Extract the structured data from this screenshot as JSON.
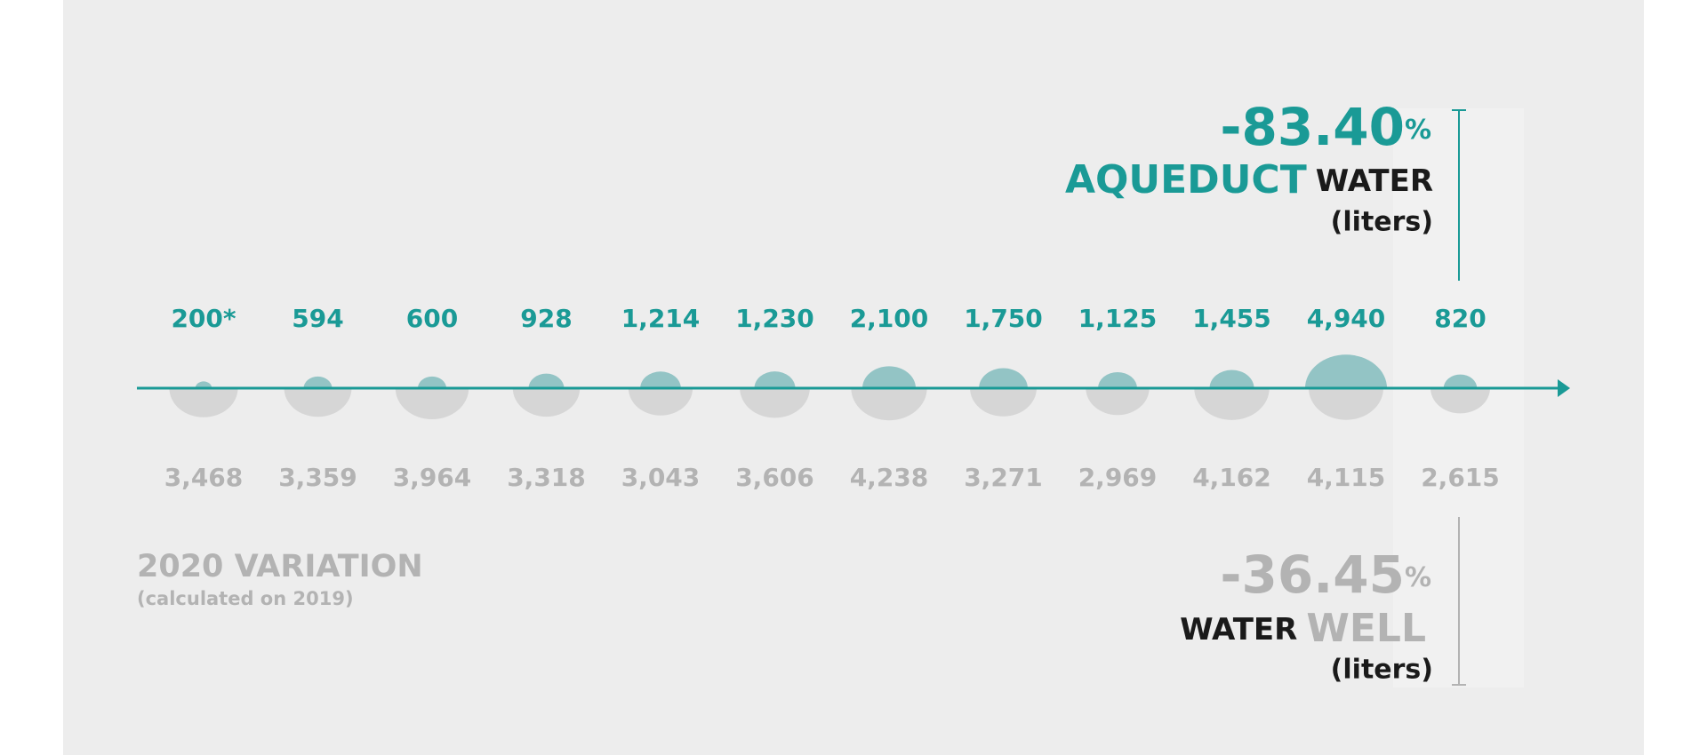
{
  "chart_data": {
    "type": "bubble",
    "series": [
      {
        "name": "AQUEDUCT",
        "color": "#1a9a96",
        "blob_color": "#93c4c5",
        "values": [
          200,
          594,
          600,
          928,
          1214,
          1230,
          2100,
          1750,
          1125,
          1455,
          4940,
          820
        ],
        "value_labels": [
          "200*",
          "594",
          "600",
          "928",
          "1,214",
          "1,230",
          "2,100",
          "1,750",
          "1,125",
          "1,455",
          "4,940",
          "820"
        ]
      },
      {
        "name": "WELL",
        "color": "#b3b3b3",
        "blob_color": "#d6d6d6",
        "values": [
          3468,
          3359,
          3964,
          3318,
          3043,
          3606,
          4238,
          3271,
          2969,
          4162,
          4115,
          2615
        ],
        "value_labels": [
          "3,468",
          "3,359",
          "3,964",
          "3,318",
          "3,043",
          "3,606",
          "4,238",
          "3,271",
          "2,969",
          "4,162",
          "4,115",
          "2,615"
        ]
      }
    ],
    "annotations": [
      {
        "change": "-83.40",
        "unit": "%",
        "word": "WATER",
        "note": "(liters)"
      },
      {
        "change": "-36.45",
        "unit": "%",
        "word": "WATER",
        "note": "(liters)"
      }
    ],
    "footnote": {
      "title": "2020 VARIATION",
      "subtitle": "(calculated on 2019)"
    }
  }
}
